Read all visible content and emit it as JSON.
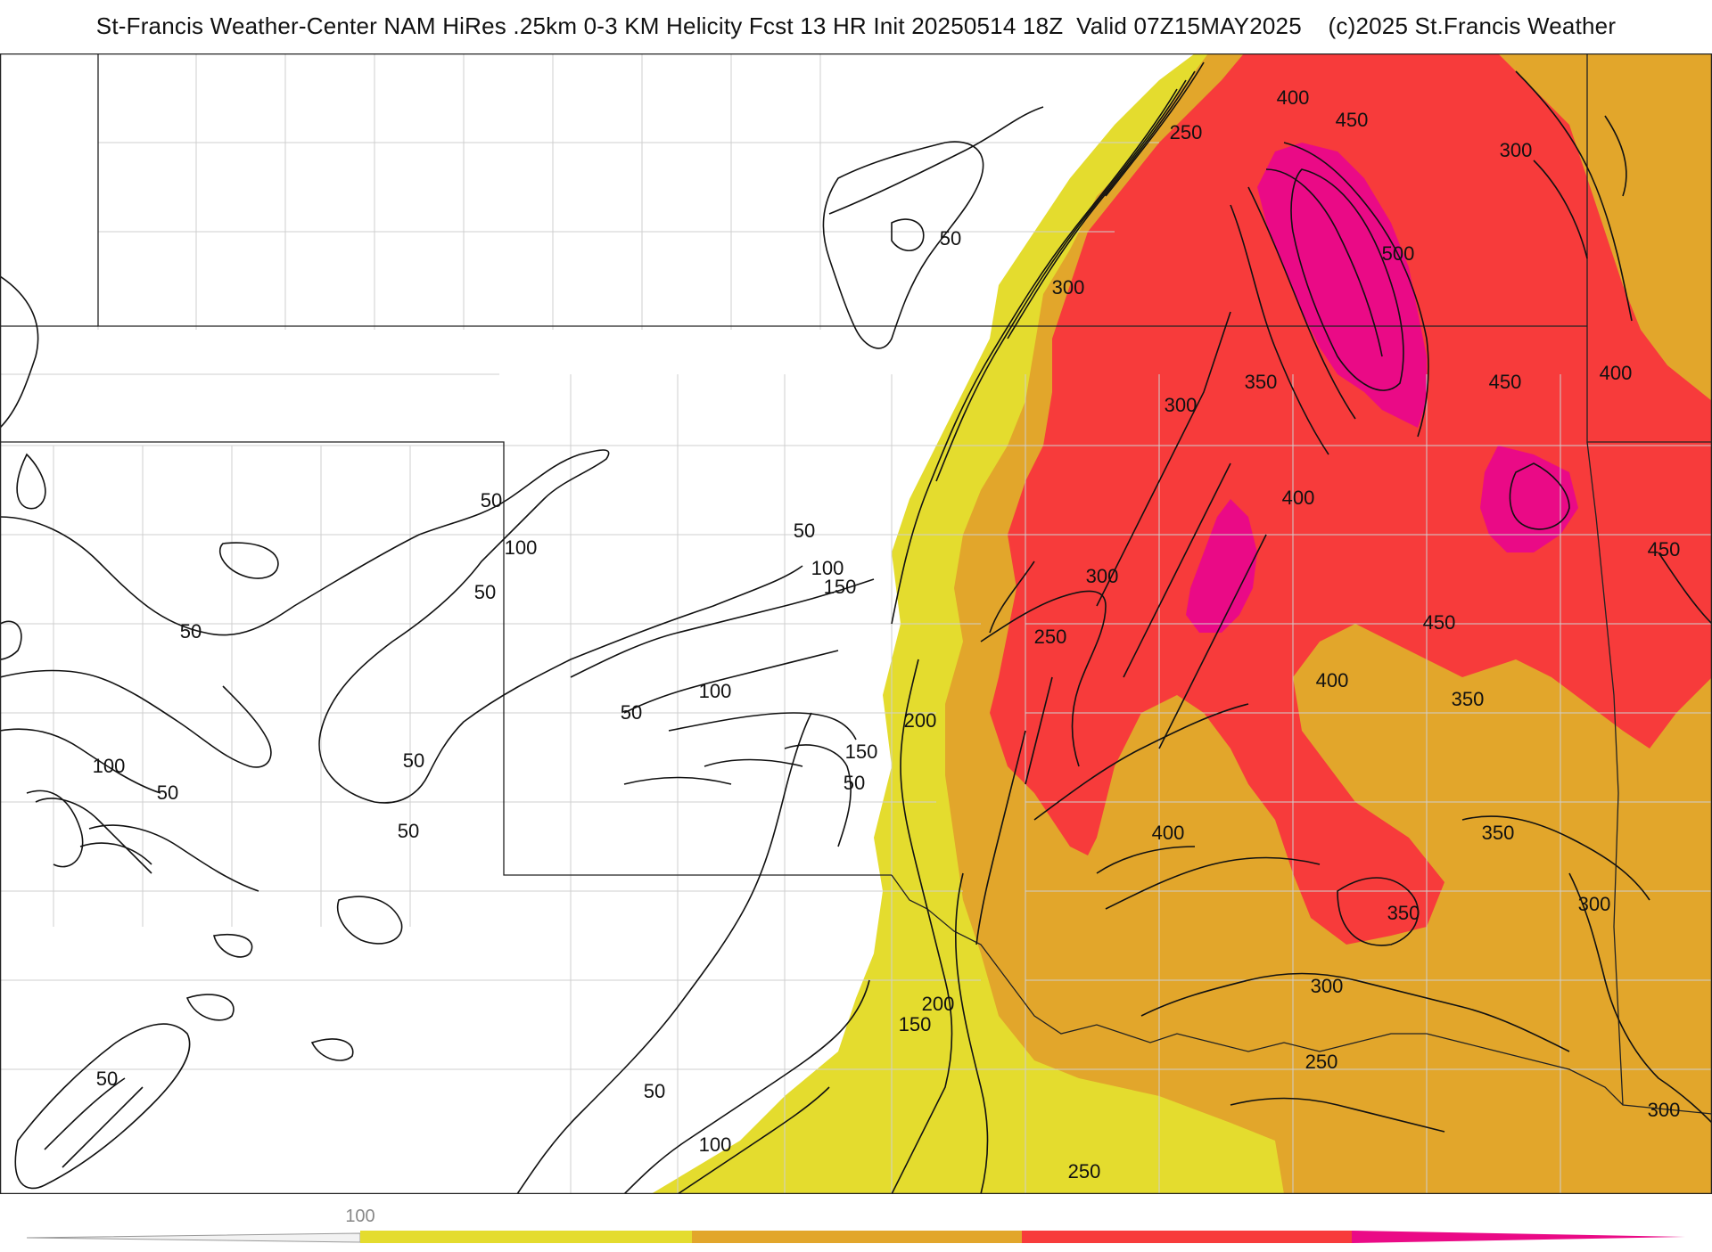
{
  "title": "St-Francis Weather-Center NAM HiRes .25km 0-3 KM Helicity Fcst 13 HR Init 20250514 18Z  Valid 07Z15MAY2025    (c)2025 St.Francis Weather",
  "colors": {
    "c100": "#e4dc2e",
    "c250": "#e2a62b",
    "c300": "#f73b3b",
    "c500": "#ea0a86",
    "contour": "#111111",
    "county": "#cfcfcf",
    "state": "#222222"
  },
  "legend": {
    "tick_label": "100",
    "bins": [
      "#e4dc2e",
      "#e2a62b",
      "#f73b3b",
      "#ea0a86"
    ]
  },
  "contour_labels": [
    {
      "text": "250",
      "id": "lbl-250-a"
    },
    {
      "text": "400",
      "id": "lbl-400-a"
    },
    {
      "text": "450",
      "id": "lbl-450-a"
    },
    {
      "text": "300",
      "id": "lbl-300-a"
    },
    {
      "text": "50",
      "id": "lbl-50-a"
    },
    {
      "text": "500",
      "id": "lbl-500-a"
    },
    {
      "text": "300",
      "id": "lbl-300-b"
    },
    {
      "text": "400",
      "id": "lbl-400-b"
    },
    {
      "text": "350",
      "id": "lbl-350-a"
    },
    {
      "text": "300",
      "id": "lbl-300-c"
    },
    {
      "text": "450",
      "id": "lbl-450-b"
    },
    {
      "text": "400",
      "id": "lbl-400-c"
    },
    {
      "text": "50",
      "id": "lbl-50-b"
    },
    {
      "text": "100",
      "id": "lbl-100-a"
    },
    {
      "text": "50",
      "id": "lbl-50-c"
    },
    {
      "text": "50",
      "id": "lbl-50-d"
    },
    {
      "text": "100",
      "id": "lbl-100-b"
    },
    {
      "text": "150",
      "id": "lbl-150-a"
    },
    {
      "text": "300",
      "id": "lbl-300-d"
    },
    {
      "text": "450",
      "id": "lbl-450-c"
    },
    {
      "text": "450",
      "id": "lbl-450-d"
    },
    {
      "text": "50",
      "id": "lbl-50-e"
    },
    {
      "text": "250",
      "id": "lbl-250-b"
    },
    {
      "text": "100",
      "id": "lbl-100-c"
    },
    {
      "text": "400",
      "id": "lbl-400-d"
    },
    {
      "text": "350",
      "id": "lbl-350-b"
    },
    {
      "text": "50",
      "id": "lbl-50-f"
    },
    {
      "text": "200",
      "id": "lbl-200-a"
    },
    {
      "text": "150",
      "id": "lbl-150-b"
    },
    {
      "text": "100",
      "id": "lbl-100-d"
    },
    {
      "text": "50",
      "id": "lbl-50-g"
    },
    {
      "text": "50",
      "id": "lbl-50-h"
    },
    {
      "text": "50",
      "id": "lbl-50-i"
    },
    {
      "text": "50",
      "id": "lbl-50-j"
    },
    {
      "text": "400",
      "id": "lbl-400-e"
    },
    {
      "text": "350",
      "id": "lbl-350-c"
    },
    {
      "text": "300",
      "id": "lbl-300-e"
    },
    {
      "text": "350",
      "id": "lbl-350-d"
    },
    {
      "text": "300",
      "id": "lbl-300-f"
    },
    {
      "text": "200",
      "id": "lbl-200-b"
    },
    {
      "text": "150",
      "id": "lbl-150-c"
    },
    {
      "text": "250",
      "id": "lbl-250-c"
    },
    {
      "text": "50",
      "id": "lbl-50-k"
    },
    {
      "text": "50",
      "id": "lbl-50-l"
    },
    {
      "text": "100",
      "id": "lbl-100-e"
    },
    {
      "text": "300",
      "id": "lbl-300-g"
    },
    {
      "text": "250",
      "id": "lbl-250-d"
    }
  ]
}
